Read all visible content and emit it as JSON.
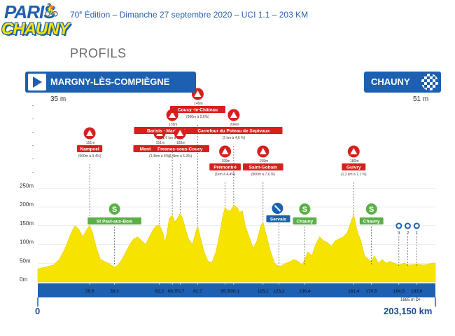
{
  "header": {
    "logo_top": "PARIS",
    "logo_bottom": "CHAUNY",
    "edition_number": "70",
    "edition_suffix": "e",
    "subtitle_rest": " Édition – Dimanche 27 septembre 2020 – UCI 1.1 – 203 KM"
  },
  "section_title": "PROFILS",
  "start": {
    "name": "MARGNY-LÈS-COMPIÈGNE",
    "altitude": "35 m",
    "km": "0"
  },
  "finish": {
    "name": "CHAUNY",
    "altitude": "51 m",
    "km": "203,150 km"
  },
  "elevation_gain": "1665 m D+",
  "colors": {
    "profile_fill": "#f6e400",
    "axis_blue": "#1d5fb0",
    "climb_red": "#d7201e",
    "sprint_green": "#5ab046",
    "title_blue": "#2a62ad"
  },
  "chart_data": {
    "type": "area",
    "xlim": [
      0,
      203.15
    ],
    "ylim": [
      0,
      290
    ],
    "ylabel_ticks": [
      "0m",
      "50m",
      "100m",
      "150m",
      "200m",
      "250m"
    ],
    "y_ticks": [
      0,
      50,
      100,
      150,
      200,
      250
    ],
    "x_ticks": [
      26.5,
      39.2,
      62.2,
      68.7,
      72.7,
      81.7,
      95.7,
      100.1,
      115.1,
      123.2,
      136.4,
      161.4,
      170.5,
      184.5,
      193.6
    ],
    "x_tick_labels": [
      "26,5",
      "39,2",
      "62,2",
      "68,7",
      "72,7",
      "81,7",
      "95,7",
      "100,1",
      "115,1",
      "123,2",
      "136,4",
      "161,4",
      "170,5",
      "184,5",
      "193,6"
    ],
    "profile": [
      [
        0,
        35
      ],
      [
        4,
        40
      ],
      [
        8,
        45
      ],
      [
        11,
        60
      ],
      [
        14,
        90
      ],
      [
        17,
        130
      ],
      [
        19,
        150
      ],
      [
        21,
        140
      ],
      [
        23,
        120
      ],
      [
        25,
        140
      ],
      [
        26.5,
        151
      ],
      [
        28,
        130
      ],
      [
        30,
        90
      ],
      [
        32,
        60
      ],
      [
        34,
        55
      ],
      [
        36,
        50
      ],
      [
        37.5,
        45
      ],
      [
        39.2,
        40
      ],
      [
        41,
        45
      ],
      [
        43,
        60
      ],
      [
        45,
        80
      ],
      [
        47,
        100
      ],
      [
        49,
        115
      ],
      [
        51,
        120
      ],
      [
        53,
        110
      ],
      [
        55,
        100
      ],
      [
        57,
        120
      ],
      [
        59,
        140
      ],
      [
        60.5,
        150
      ],
      [
        62.2,
        151
      ],
      [
        64,
        130
      ],
      [
        65,
        105
      ],
      [
        66,
        130
      ],
      [
        67.2,
        170
      ],
      [
        68.7,
        178
      ],
      [
        70,
        160
      ],
      [
        71.2,
        168
      ],
      [
        72.7,
        183
      ],
      [
        74,
        170
      ],
      [
        75.5,
        140
      ],
      [
        77,
        115
      ],
      [
        79,
        100
      ],
      [
        80.5,
        130
      ],
      [
        81.7,
        149
      ],
      [
        83,
        120
      ],
      [
        85,
        80
      ],
      [
        87,
        55
      ],
      [
        89,
        52
      ],
      [
        91,
        80
      ],
      [
        93,
        130
      ],
      [
        94.5,
        175
      ],
      [
        95.7,
        199
      ],
      [
        97,
        190
      ],
      [
        98.5,
        190
      ],
      [
        100.1,
        204
      ],
      [
        102,
        198
      ],
      [
        103,
        185
      ],
      [
        104.5,
        190
      ],
      [
        106,
        150
      ],
      [
        108,
        120
      ],
      [
        110,
        90
      ],
      [
        112,
        110
      ],
      [
        114,
        150
      ],
      [
        115.1,
        159
      ],
      [
        117,
        120
      ],
      [
        119,
        80
      ],
      [
        121,
        50
      ],
      [
        123.2,
        40
      ],
      [
        125,
        45
      ],
      [
        127,
        50
      ],
      [
        129,
        55
      ],
      [
        131,
        60
      ],
      [
        133,
        55
      ],
      [
        135,
        45
      ],
      [
        136.4,
        60
      ],
      [
        138,
        80
      ],
      [
        140,
        70
      ],
      [
        142,
        100
      ],
      [
        144,
        120
      ],
      [
        146,
        110
      ],
      [
        148,
        105
      ],
      [
        150,
        95
      ],
      [
        152,
        110
      ],
      [
        154,
        115
      ],
      [
        156,
        120
      ],
      [
        158,
        130
      ],
      [
        160,
        160
      ],
      [
        161.4,
        180
      ],
      [
        163,
        140
      ],
      [
        165,
        110
      ],
      [
        167,
        70
      ],
      [
        169,
        60
      ],
      [
        170.5,
        55
      ],
      [
        172,
        70
      ],
      [
        174,
        50
      ],
      [
        176,
        60
      ],
      [
        178,
        50
      ],
      [
        180,
        55
      ],
      [
        182,
        50
      ],
      [
        184.5,
        45
      ],
      [
        187,
        50
      ],
      [
        190,
        45
      ],
      [
        193.6,
        48
      ],
      [
        197,
        45
      ],
      [
        200,
        48
      ],
      [
        203.15,
        51
      ]
    ],
    "climbs": [
      {
        "name": "Nampcel",
        "km": 26.5,
        "alt": "151m",
        "detail": "(900m à 3,4%)",
        "level": 1
      },
      {
        "name": "Montagne de Buin",
        "km": 62.2,
        "alt": "151m",
        "detail": "(1,4km à 5%)",
        "level": 1
      },
      {
        "name": "Barisis - Martial Gayant",
        "km": 68.7,
        "alt": "178m",
        "detail": "(1,6 km à 5%)",
        "level": 2
      },
      {
        "name": "Fresnes-sous-Coucy",
        "km": 72.7,
        "alt": "183m",
        "detail": "(1,4km à 5,3%)",
        "level": 1
      },
      {
        "name": "Coucy -le-Château",
        "km": 81.7,
        "alt": "149m",
        "detail": "(900m à 5,6%)",
        "level": 3
      },
      {
        "name": "Prémontré",
        "km": 95.7,
        "alt": "199m",
        "detail": "(1km à 4,4%)",
        "level": 0
      },
      {
        "name": "Carrefour du Poteau de Septvaux",
        "km": 100.1,
        "alt": "204m",
        "detail": "(2 km à 4,6 %)",
        "level": 2
      },
      {
        "name": "Saint-Gobain",
        "km": 115.1,
        "alt": "159m",
        "detail": "(900m à 7,6 %)",
        "level": 0
      },
      {
        "name": "Guivry",
        "km": 161.4,
        "alt": "180m",
        "detail": "(1,2 km à 7,1 %)",
        "level": 0
      }
    ],
    "sprints": [
      {
        "name": "St Paul-aux-Bois",
        "km": 39.2
      },
      {
        "name": "Chauny",
        "km": 136.4
      },
      {
        "name": "Chauny",
        "km": 170.5
      }
    ],
    "feed": {
      "name": "Servais",
      "km": 123.2
    },
    "laps": [
      {
        "label": "3",
        "km": 184.5
      },
      {
        "label": "2",
        "km": 189
      },
      {
        "label": "1",
        "km": 193.6
      }
    ]
  }
}
